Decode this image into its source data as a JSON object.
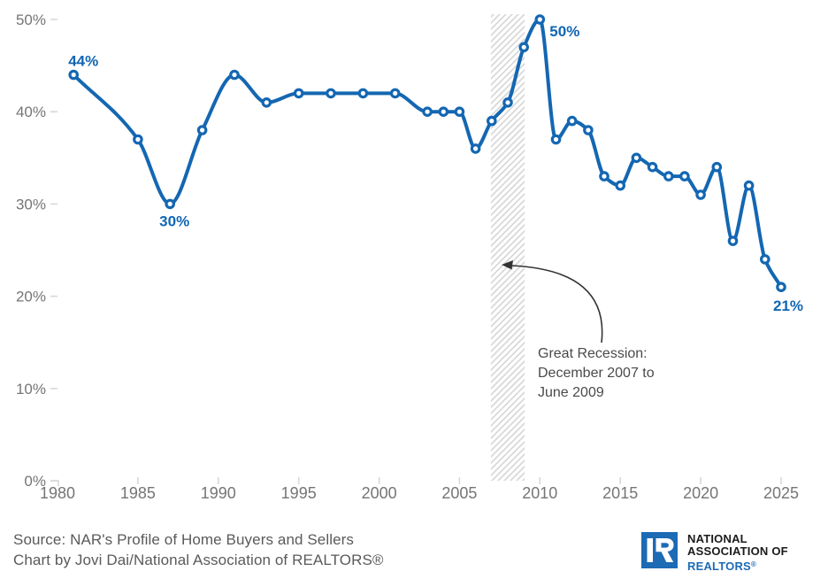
{
  "chart_data": {
    "type": "line",
    "x": [
      1981,
      1985,
      1987,
      1989,
      1991,
      1993,
      1995,
      1997,
      1999,
      2001,
      2003,
      2004,
      2005,
      2006,
      2007,
      2008,
      2009,
      2010,
      2011,
      2012,
      2013,
      2014,
      2015,
      2016,
      2017,
      2018,
      2019,
      2020,
      2021,
      2022,
      2023,
      2024,
      2025
    ],
    "values": [
      44,
      37,
      30,
      38,
      44,
      41,
      42,
      42,
      42,
      42,
      40,
      40,
      40,
      36,
      39,
      41,
      47,
      50,
      37,
      39,
      38,
      33,
      32,
      35,
      34,
      33,
      33,
      31,
      34,
      26,
      32,
      24,
      21
    ],
    "xlim": [
      1980,
      2025
    ],
    "ylim": [
      0,
      50
    ],
    "grid": false,
    "legend": "none",
    "x_ticks": {
      "values": [
        1980,
        1985,
        1990,
        1995,
        2000,
        2005,
        2010,
        2015,
        2020,
        2025
      ],
      "labels": [
        "1980",
        "1985",
        "1990",
        "1995",
        "2000",
        "2005",
        "2010",
        "2015",
        "2020",
        "2025"
      ]
    },
    "y_ticks": {
      "values": [
        0,
        10,
        20,
        30,
        40,
        50
      ],
      "labels": [
        "0%",
        "10%",
        "20%",
        "30%",
        "40%",
        "50%"
      ]
    },
    "line_color": "#1467b2",
    "label_color": "#1166b4",
    "marker_fill": "#ffffff",
    "point_labels": [
      {
        "year": 1981,
        "value": 44,
        "text": "44%",
        "placement": "above-left"
      },
      {
        "year": 1987,
        "value": 30,
        "text": "30%",
        "placement": "below"
      },
      {
        "year": 2010,
        "value": 50,
        "text": "50%",
        "placement": "right"
      },
      {
        "year": 2025,
        "value": 21,
        "text": "21%",
        "placement": "below-right"
      }
    ],
    "recession_band": {
      "from_year": 2006.95,
      "to_year": 2009.05,
      "hatch_color": "#d8d8d8",
      "annotation_lines": [
        "Great Recession:",
        "December 2007 to",
        "June 2009"
      ]
    }
  },
  "colors": {
    "axis_text": "#757575",
    "tick_mark": "#d6d6d6",
    "annotation_text": "#4a4a4a",
    "arrow": "#333333",
    "footer_text": "#5a5a5a"
  },
  "footer": {
    "source_line": "Source: NAR's Profile of Home Buyers and Sellers",
    "credit_line": "Chart by Jovi Dai/National Association of REALTORS®"
  },
  "logo": {
    "line1": "NATIONAL",
    "line2": "ASSOCIATION OF",
    "line3": "REALTORS",
    "registered_mark": "®",
    "brand_blue": "#1d6ab5"
  }
}
